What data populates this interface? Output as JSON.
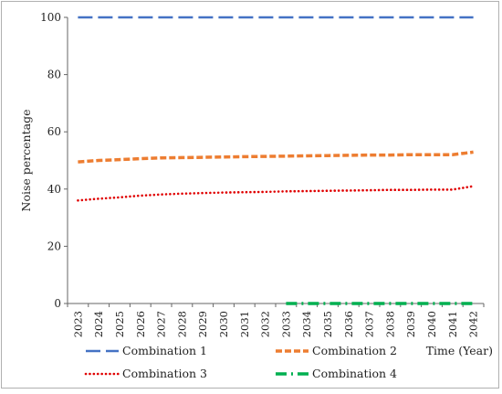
{
  "chart_data": {
    "type": "line",
    "ylabel": "Noise percentage",
    "xlabel": "Time (Year)",
    "ylim": [
      0,
      100
    ],
    "yticks": [
      0,
      20,
      40,
      60,
      80,
      100
    ],
    "grid": false,
    "legend_position": "bottom",
    "x": [
      "2023",
      "2024",
      "2025",
      "2026",
      "2027",
      "2028",
      "2029",
      "2030",
      "2031",
      "2032",
      "2033",
      "2034",
      "2035",
      "2036",
      "2037",
      "2038",
      "2039",
      "2040",
      "2041",
      "2042"
    ],
    "series": [
      {
        "name": "Combination 1",
        "color": "#4472C4",
        "dash": "long-dash",
        "values": [
          100,
          100,
          100,
          100,
          100,
          100,
          100,
          100,
          100,
          100,
          100,
          100,
          100,
          100,
          100,
          100,
          100,
          100,
          100,
          100
        ]
      },
      {
        "name": "Combination 2",
        "color": "#ED7D31",
        "dash": "dash",
        "values": [
          49.5,
          50.0,
          50.3,
          50.6,
          50.9,
          51.0,
          51.1,
          51.2,
          51.3,
          51.4,
          51.5,
          51.6,
          51.7,
          51.8,
          51.9,
          51.9,
          52.0,
          52.0,
          52.0,
          52.9
        ]
      },
      {
        "name": "Combination 3",
        "color": "#E00000",
        "dash": "dot",
        "values": [
          36.0,
          36.6,
          37.1,
          37.7,
          38.1,
          38.4,
          38.6,
          38.8,
          38.9,
          39.0,
          39.2,
          39.3,
          39.4,
          39.5,
          39.6,
          39.7,
          39.7,
          39.8,
          39.8,
          41.0
        ]
      },
      {
        "name": "Combination 4",
        "color": "#00B050",
        "dash": "dash-dot",
        "values": [
          0,
          0,
          0,
          0,
          0,
          0,
          0,
          0,
          0,
          0,
          0,
          0,
          0,
          0,
          0,
          0,
          0,
          0,
          0,
          0
        ],
        "visible_from_index": 10
      }
    ]
  }
}
